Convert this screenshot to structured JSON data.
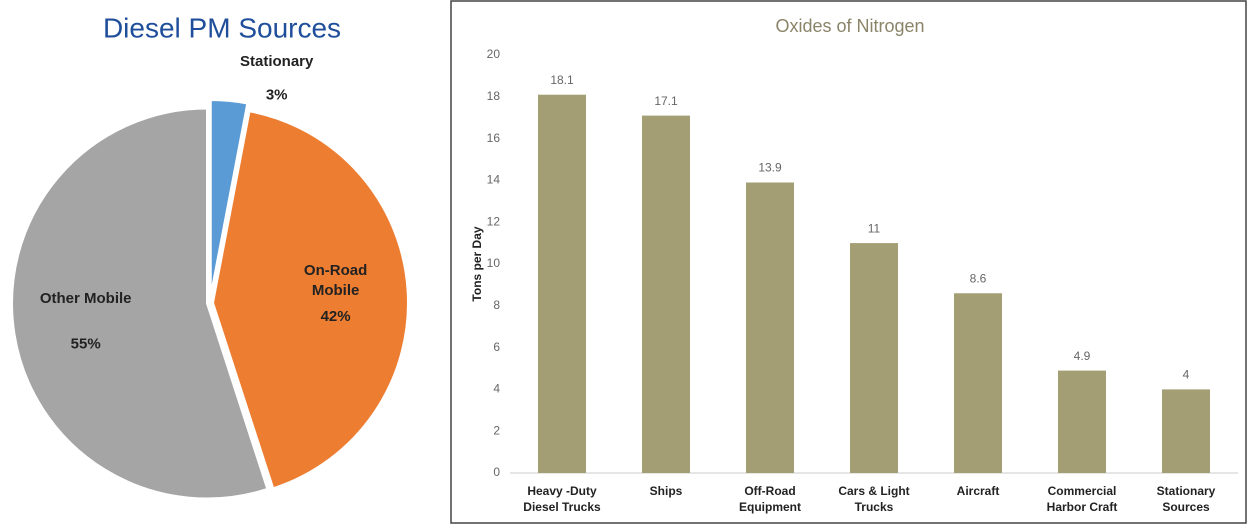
{
  "chart_data": [
    {
      "type": "pie",
      "title": "Diesel PM Sources",
      "categories": [
        "Stationary",
        "On-Road Mobile",
        "Other Mobile"
      ],
      "values": [
        3,
        42,
        55
      ],
      "value_labels": [
        "3%",
        "42%",
        "55%"
      ],
      "colors": [
        "#5b9bd5",
        "#ed7d31",
        "#a5a5a5"
      ]
    },
    {
      "type": "bar",
      "title": "Oxides of Nitrogen",
      "y_label": "Tons per Day",
      "categories": [
        "Heavy -Duty Diesel Trucks",
        "Ships",
        "Off-Road Equipment",
        "Cars & Light Trucks",
        "Aircraft",
        "Commercial Harbor Craft",
        "Stationary Sources"
      ],
      "values": [
        18.1,
        17.1,
        13.9,
        11,
        8.6,
        4.9,
        4
      ],
      "color": "#a39e74",
      "ylim": [
        0,
        20
      ],
      "yticks": [
        0,
        2,
        4,
        6,
        8,
        10,
        12,
        14,
        16,
        18,
        20
      ],
      "grid": false
    }
  ]
}
